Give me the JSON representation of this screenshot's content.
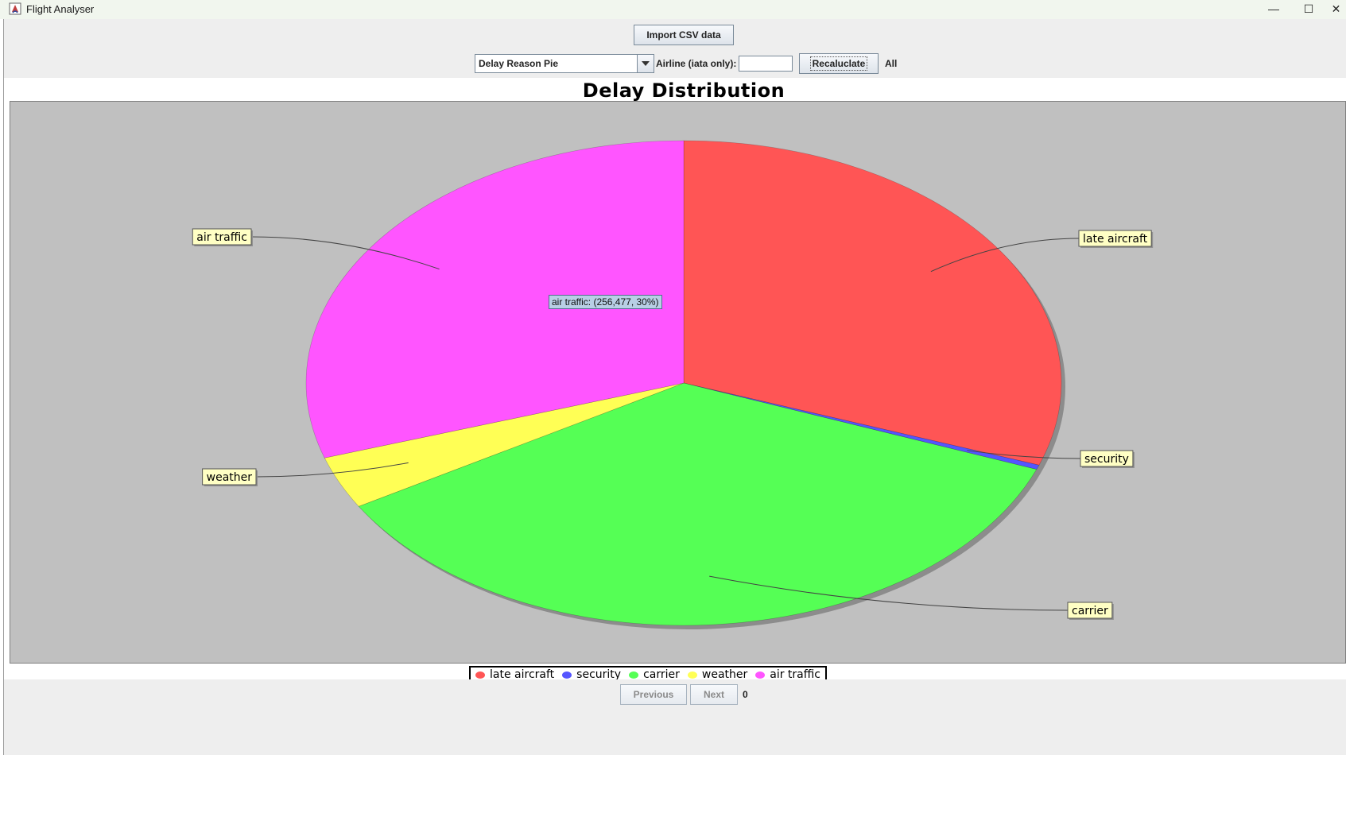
{
  "window": {
    "title": "Flight Analyser",
    "minimize_icon": "minimize-icon",
    "maximize_icon": "maximize-icon",
    "close_icon": "close-icon"
  },
  "toolbar": {
    "import_label": "Import CSV data",
    "chart_select_value": "Delay Reason Pie",
    "airline_label": "Airline (iata only):",
    "airline_value": "",
    "recalculate_label": "Recaluclate",
    "filter_status": "All"
  },
  "tooltip": {
    "text": "air traffic: (256,477, 30%)"
  },
  "navigation": {
    "previous_label": "Previous",
    "next_label": "Next",
    "page": "0"
  },
  "chart_data": {
    "type": "pie",
    "title": "Delay Distribution",
    "categories": [
      "late aircraft",
      "security",
      "carrier",
      "weather",
      "air traffic"
    ],
    "values": [
      0.305,
      0.003,
      0.357,
      0.035,
      0.3
    ],
    "colors": [
      "#ff5555",
      "#5555ff",
      "#55ff55",
      "#ffff55",
      "#ff55ff"
    ],
    "legend_position": "bottom",
    "background": "#c0c0c0"
  }
}
